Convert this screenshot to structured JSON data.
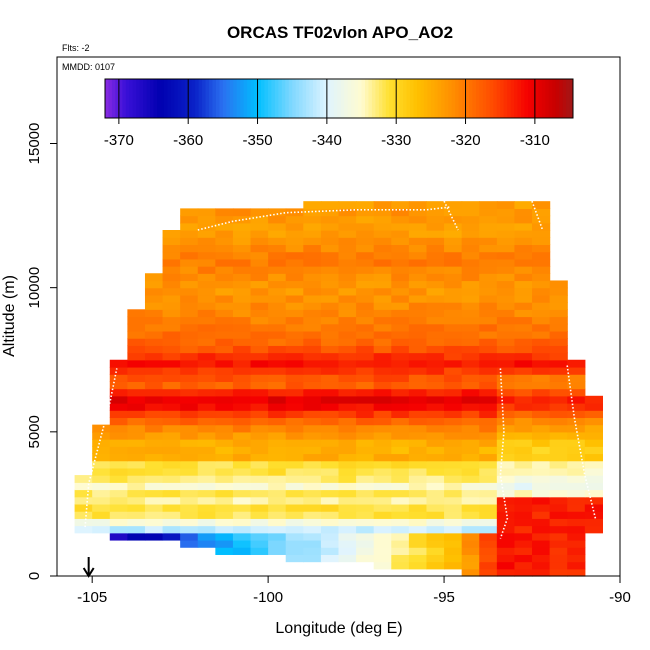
{
  "chart_data": {
    "type": "heatmap",
    "title": "ORCAS TF02vlon APO_AO2",
    "annotations": {
      "flights": "Flts: -2",
      "date": "MMDD: 0107"
    },
    "xlabel": "Longitude (deg E)",
    "ylabel": "Altitude (m)",
    "xlim": [
      -106,
      -90
    ],
    "ylim": [
      0,
      18000
    ],
    "x_ticks": [
      -105,
      -100,
      -95,
      -90
    ],
    "x_tick_labels": [
      "-105",
      "-100",
      "-95",
      "-90"
    ],
    "y_ticks": [
      0,
      5000,
      10000,
      15000
    ],
    "y_tick_labels": [
      "0",
      "5000",
      "10000",
      "15000"
    ],
    "colorbar": {
      "min": -372,
      "max": -304.5,
      "ticks": [
        -370,
        -360,
        -350,
        -340,
        -330,
        -320,
        -310
      ],
      "tick_labels": [
        "-370",
        "-360",
        "-350",
        "-340",
        "-330",
        "-320",
        "-310"
      ],
      "stops": [
        {
          "v": -372,
          "c": "#8a2be2"
        },
        {
          "v": -369,
          "c": "#3a10d8"
        },
        {
          "v": -364,
          "c": "#0000b0"
        },
        {
          "v": -359,
          "c": "#0a22c8"
        },
        {
          "v": -355,
          "c": "#2a70f0"
        },
        {
          "v": -350,
          "c": "#00bfff"
        },
        {
          "v": -345,
          "c": "#80d8ff"
        },
        {
          "v": -340,
          "c": "#dff4ff"
        },
        {
          "v": -335,
          "c": "#fffbd0"
        },
        {
          "v": -331,
          "c": "#ffe030"
        },
        {
          "v": -327,
          "c": "#ffc000"
        },
        {
          "v": -322,
          "c": "#ff9000"
        },
        {
          "v": -316,
          "c": "#ff4a00"
        },
        {
          "v": -311,
          "c": "#f50000"
        },
        {
          "v": -307,
          "c": "#c80000"
        },
        {
          "v": -304.5,
          "c": "#a01818"
        }
      ]
    },
    "marker": {
      "label": "arrow",
      "longitude": -105.1
    },
    "grid_lon_start": -105.5,
    "grid_lon_end": -90.5,
    "grid_cell_lon": 0.5,
    "grid_alt_start": 0,
    "grid_alt_end": 13000,
    "grid_cell_alt": 250,
    "domain_left_edge": [
      [
        1500,
        -105.5
      ],
      [
        3300,
        -105.3
      ],
      [
        4500,
        -104.9
      ],
      [
        6000,
        -104.6
      ],
      [
        7200,
        -104.3
      ],
      [
        8500,
        -104.0
      ],
      [
        10000,
        -103.4
      ],
      [
        11300,
        -103.0
      ],
      [
        12600,
        -102.6
      ]
    ],
    "domain_right_edge": [
      [
        0,
        -91.1
      ],
      [
        2000,
        -90.6
      ],
      [
        4500,
        -90.5
      ],
      [
        6000,
        -90.7
      ],
      [
        7500,
        -91.3
      ],
      [
        9000,
        -91.5
      ],
      [
        10500,
        -91.8
      ],
      [
        12000,
        -92.0
      ],
      [
        13000,
        -92.2
      ]
    ],
    "domain_low_floor": [
      [
        -105.5,
        1500
      ],
      [
        -104.0,
        1300
      ],
      [
        -102.5,
        1100
      ],
      [
        -101.0,
        800
      ],
      [
        -99.5,
        600
      ],
      [
        -97.5,
        400
      ],
      [
        -96.0,
        300
      ],
      [
        -93.5,
        0
      ],
      [
        -91.0,
        0
      ]
    ],
    "domain_top": [
      [
        -102.6,
        12600
      ],
      [
        -100.0,
        12800
      ],
      [
        -97.0,
        13000
      ],
      [
        -94.5,
        13000
      ],
      [
        -92.2,
        13100
      ]
    ],
    "altitude_profile": [
      [
        0,
        -316
      ],
      [
        300,
        -336
      ],
      [
        600,
        -345
      ],
      [
        900,
        -350
      ],
      [
        1200,
        -364
      ],
      [
        1450,
        -366
      ],
      [
        1600,
        -342
      ],
      [
        1800,
        -338
      ],
      [
        2000,
        -333
      ],
      [
        2300,
        -330
      ],
      [
        2600,
        -334
      ],
      [
        2900,
        -332
      ],
      [
        3200,
        -336
      ],
      [
        3500,
        -330
      ],
      [
        3800,
        -333
      ],
      [
        4100,
        -325
      ],
      [
        4500,
        -326
      ],
      [
        5000,
        -322
      ],
      [
        5400,
        -318
      ],
      [
        5800,
        -312
      ],
      [
        6200,
        -309
      ],
      [
        6600,
        -318
      ],
      [
        7000,
        -316
      ],
      [
        7400,
        -312
      ],
      [
        8000,
        -318
      ],
      [
        9000,
        -321
      ],
      [
        10000,
        -323
      ],
      [
        11000,
        -320
      ],
      [
        12000,
        -324
      ],
      [
        12800,
        -322
      ],
      [
        13200,
        -330
      ]
    ],
    "lower_gradient_longitudes": [
      -105.5,
      -103.5,
      -101.5,
      -99.5,
      -97.5,
      -96.0,
      -94.5,
      -93.5,
      -91.0
    ],
    "lower_gradient_values": [
      -368,
      -364,
      -352,
      -345,
      -338,
      -332,
      -326,
      -312,
      -314
    ],
    "east_columns": {
      "start_lon": -93.5,
      "offset": 8,
      "below_alt": 7000
    }
  }
}
